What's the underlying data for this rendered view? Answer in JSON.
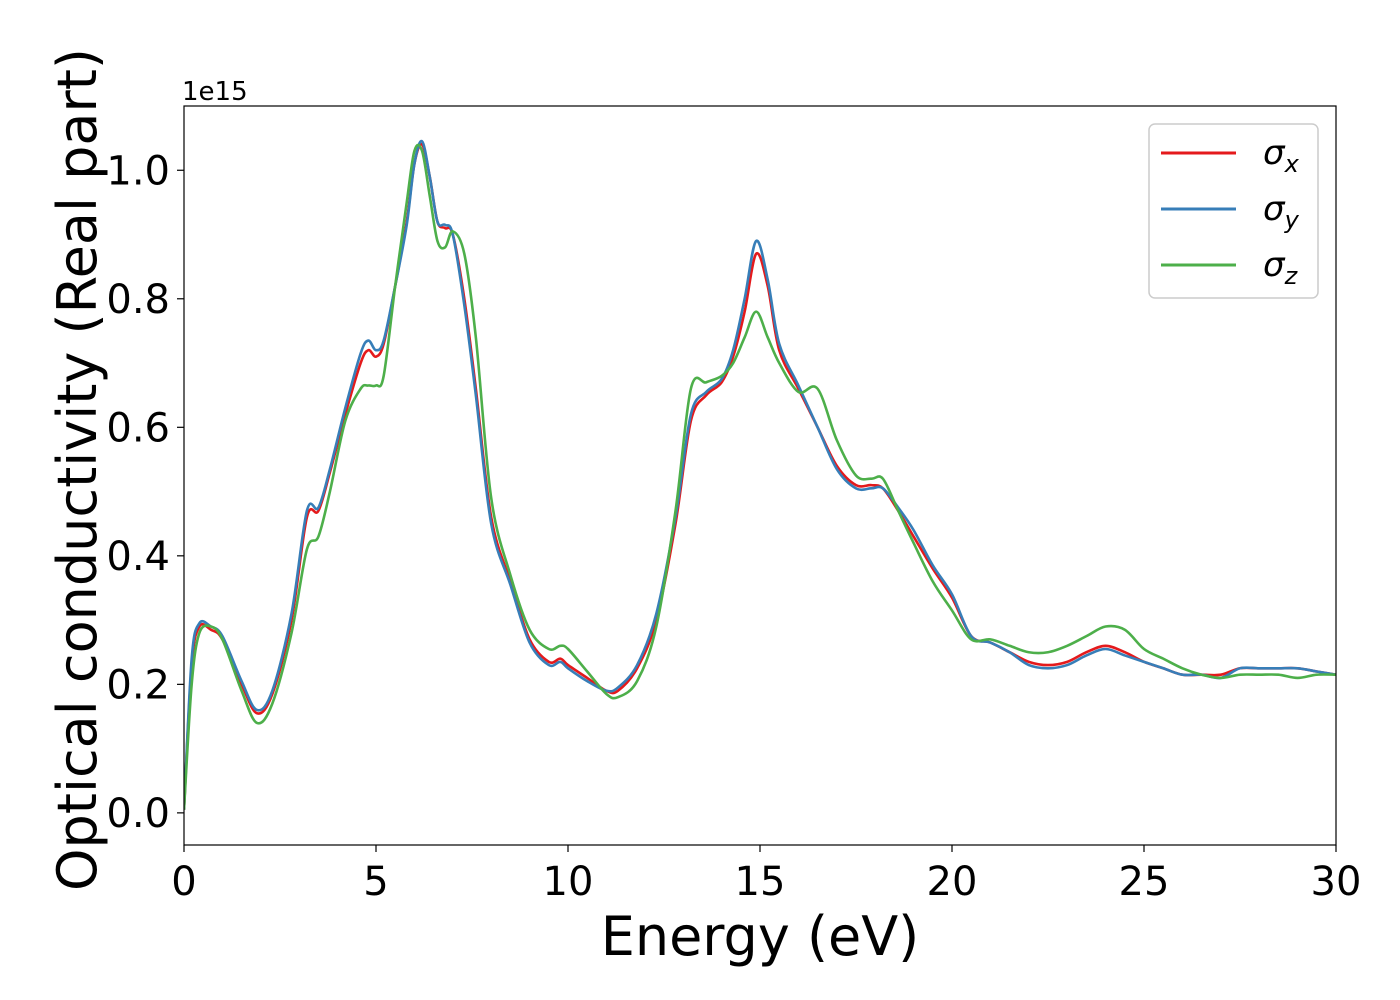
{
  "chart_data": {
    "type": "line",
    "xlabel": "Energy (eV)",
    "ylabel": "Optical conductivity (Real part)",
    "y_offset_text": "1e15",
    "xlim": [
      0,
      30
    ],
    "ylim": [
      -0.05,
      1.1
    ],
    "xticks": [
      0,
      5,
      10,
      15,
      20,
      25,
      30
    ],
    "yticks": [
      0.0,
      0.2,
      0.4,
      0.6,
      0.8,
      1.0
    ],
    "xtick_labels": [
      "0",
      "5",
      "10",
      "15",
      "20",
      "25",
      "30"
    ],
    "ytick_labels": [
      "0.0",
      "0.2",
      "0.4",
      "0.6",
      "0.8",
      "1.0"
    ],
    "legend": {
      "location": "upper right"
    },
    "series": [
      {
        "name": "σx",
        "base": "σ",
        "sub": "x",
        "color": "#e41a1c",
        "x": [
          0,
          0.2,
          0.4,
          0.7,
          1.0,
          1.5,
          1.9,
          2.3,
          2.8,
          3.2,
          3.5,
          3.8,
          4.2,
          4.6,
          4.8,
          5.0,
          5.2,
          5.5,
          5.8,
          6.0,
          6.2,
          6.4,
          6.6,
          6.8,
          7.0,
          7.3,
          7.6,
          8.0,
          8.5,
          9.0,
          9.5,
          9.8,
          10.0,
          10.5,
          11.0,
          11.3,
          11.8,
          12.3,
          12.8,
          13.2,
          13.6,
          14.0,
          14.3,
          14.6,
          14.9,
          15.2,
          15.5,
          16.0,
          16.5,
          17.0,
          17.5,
          17.9,
          18.2,
          18.6,
          19.0,
          19.5,
          20.0,
          20.5,
          21.0,
          21.5,
          22.0,
          22.5,
          23.0,
          23.5,
          24.0,
          24.5,
          25.0,
          25.5,
          26.0,
          26.5,
          27.0,
          27.5,
          28.0,
          28.5,
          29.0,
          29.5,
          30.0
        ],
        "y": [
          0.005,
          0.23,
          0.29,
          0.285,
          0.27,
          0.2,
          0.155,
          0.185,
          0.3,
          0.46,
          0.47,
          0.53,
          0.62,
          0.7,
          0.72,
          0.71,
          0.73,
          0.82,
          0.92,
          1.01,
          1.04,
          0.99,
          0.92,
          0.91,
          0.9,
          0.8,
          0.66,
          0.46,
          0.36,
          0.27,
          0.235,
          0.24,
          0.23,
          0.21,
          0.19,
          0.19,
          0.225,
          0.3,
          0.45,
          0.61,
          0.65,
          0.67,
          0.71,
          0.78,
          0.87,
          0.82,
          0.72,
          0.66,
          0.6,
          0.54,
          0.51,
          0.51,
          0.505,
          0.47,
          0.43,
          0.38,
          0.335,
          0.275,
          0.265,
          0.25,
          0.235,
          0.23,
          0.235,
          0.25,
          0.26,
          0.25,
          0.235,
          0.225,
          0.215,
          0.215,
          0.215,
          0.225,
          0.225,
          0.225,
          0.225,
          0.22,
          0.215
        ]
      },
      {
        "name": "σy",
        "base": "σ",
        "sub": "y",
        "color": "#377eb8",
        "x": [
          0,
          0.2,
          0.4,
          0.7,
          1.0,
          1.5,
          1.9,
          2.3,
          2.8,
          3.2,
          3.5,
          3.8,
          4.2,
          4.6,
          4.8,
          5.0,
          5.2,
          5.5,
          5.8,
          6.0,
          6.2,
          6.4,
          6.6,
          6.8,
          7.0,
          7.3,
          7.6,
          8.0,
          8.5,
          9.0,
          9.5,
          9.8,
          10.0,
          10.5,
          11.0,
          11.3,
          11.8,
          12.3,
          12.8,
          13.2,
          13.6,
          14.0,
          14.3,
          14.6,
          14.9,
          15.2,
          15.5,
          16.0,
          16.5,
          17.0,
          17.5,
          17.9,
          18.2,
          18.6,
          19.0,
          19.5,
          20.0,
          20.5,
          21.0,
          21.5,
          22.0,
          22.5,
          23.0,
          23.5,
          24.0,
          24.5,
          25.0,
          25.5,
          26.0,
          26.5,
          27.0,
          27.5,
          28.0,
          28.5,
          29.0,
          29.5,
          30.0
        ],
        "y": [
          0.005,
          0.24,
          0.295,
          0.29,
          0.275,
          0.205,
          0.16,
          0.19,
          0.31,
          0.47,
          0.475,
          0.535,
          0.63,
          0.715,
          0.735,
          0.72,
          0.735,
          0.82,
          0.915,
          1.01,
          1.045,
          0.99,
          0.92,
          0.915,
          0.9,
          0.79,
          0.65,
          0.45,
          0.355,
          0.265,
          0.23,
          0.235,
          0.225,
          0.205,
          0.19,
          0.195,
          0.23,
          0.31,
          0.46,
          0.62,
          0.655,
          0.675,
          0.72,
          0.8,
          0.89,
          0.83,
          0.73,
          0.665,
          0.6,
          0.535,
          0.505,
          0.505,
          0.505,
          0.475,
          0.44,
          0.385,
          0.34,
          0.275,
          0.265,
          0.25,
          0.23,
          0.225,
          0.23,
          0.245,
          0.255,
          0.245,
          0.235,
          0.225,
          0.215,
          0.215,
          0.21,
          0.225,
          0.225,
          0.225,
          0.225,
          0.22,
          0.215
        ]
      },
      {
        "name": "σz",
        "base": "σ",
        "sub": "z",
        "color": "#4daf4a",
        "x": [
          0,
          0.2,
          0.4,
          0.7,
          1.0,
          1.5,
          1.9,
          2.3,
          2.8,
          3.2,
          3.5,
          3.8,
          4.2,
          4.6,
          4.8,
          5.0,
          5.2,
          5.5,
          5.8,
          6.0,
          6.2,
          6.4,
          6.6,
          6.8,
          7.0,
          7.3,
          7.6,
          8.0,
          8.5,
          9.0,
          9.5,
          9.8,
          10.0,
          10.5,
          11.0,
          11.3,
          11.8,
          12.3,
          12.8,
          13.2,
          13.6,
          14.0,
          14.3,
          14.6,
          14.9,
          15.2,
          15.5,
          16.0,
          16.5,
          17.0,
          17.5,
          17.9,
          18.2,
          18.6,
          19.0,
          19.5,
          20.0,
          20.5,
          21.0,
          21.5,
          22.0,
          22.5,
          23.0,
          23.5,
          24.0,
          24.5,
          25.0,
          25.5,
          26.0,
          26.5,
          27.0,
          27.5,
          28.0,
          28.5,
          29.0,
          29.5,
          30.0
        ],
        "y": [
          0.005,
          0.2,
          0.28,
          0.29,
          0.27,
          0.19,
          0.14,
          0.17,
          0.28,
          0.41,
          0.43,
          0.5,
          0.61,
          0.66,
          0.665,
          0.665,
          0.68,
          0.82,
          0.95,
          1.03,
          1.03,
          0.96,
          0.89,
          0.88,
          0.905,
          0.87,
          0.74,
          0.49,
          0.37,
          0.285,
          0.255,
          0.26,
          0.255,
          0.22,
          0.185,
          0.18,
          0.205,
          0.29,
          0.47,
          0.66,
          0.67,
          0.68,
          0.7,
          0.74,
          0.78,
          0.74,
          0.7,
          0.655,
          0.66,
          0.58,
          0.525,
          0.52,
          0.52,
          0.47,
          0.42,
          0.36,
          0.315,
          0.27,
          0.27,
          0.26,
          0.25,
          0.25,
          0.26,
          0.275,
          0.29,
          0.285,
          0.255,
          0.24,
          0.225,
          0.215,
          0.21,
          0.215,
          0.215,
          0.215,
          0.21,
          0.215,
          0.215
        ]
      }
    ]
  }
}
